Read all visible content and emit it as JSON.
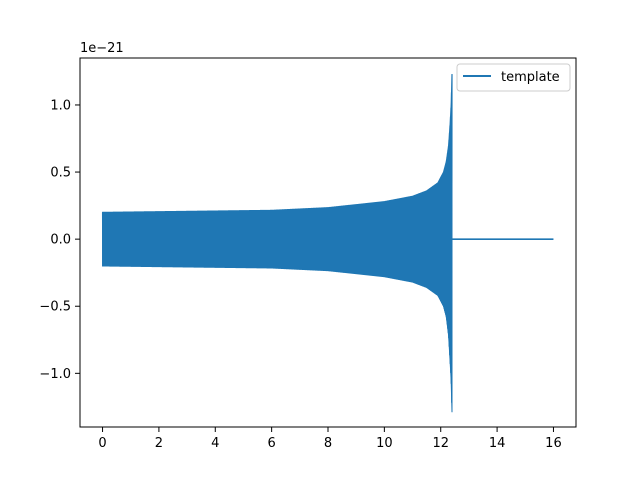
{
  "chart_data": {
    "type": "line",
    "title": "",
    "xlabel": "",
    "ylabel": "",
    "y_offset_label": "1e−21",
    "xlim": [
      -0.8,
      16.8
    ],
    "ylim": [
      -1.4,
      1.35
    ],
    "x_ticks": [
      0,
      2,
      4,
      6,
      8,
      10,
      12,
      14,
      16
    ],
    "x_tick_labels": [
      "0",
      "2",
      "4",
      "6",
      "8",
      "10",
      "12",
      "14",
      "16"
    ],
    "y_ticks": [
      -1.0,
      -0.5,
      0.0,
      0.5,
      1.0
    ],
    "y_tick_labels": [
      "−1.0",
      "−0.5",
      "0.0",
      "0.5",
      "1.0"
    ],
    "legend_position": "top-right",
    "grid": false,
    "series": [
      {
        "name": "template",
        "color": "#1f77b4",
        "envelope_upper": [
          [
            0.0,
            0.2
          ],
          [
            2.0,
            0.205
          ],
          [
            4.0,
            0.21
          ],
          [
            6.0,
            0.215
          ],
          [
            8.0,
            0.235
          ],
          [
            10.0,
            0.28
          ],
          [
            11.0,
            0.32
          ],
          [
            11.5,
            0.36
          ],
          [
            11.9,
            0.42
          ],
          [
            12.1,
            0.5
          ],
          [
            12.2,
            0.58
          ],
          [
            12.28,
            0.7
          ],
          [
            12.33,
            0.85
          ],
          [
            12.37,
            1.0
          ],
          [
            12.4,
            1.23
          ]
        ],
        "envelope_lower": [
          [
            0.0,
            -0.2
          ],
          [
            2.0,
            -0.205
          ],
          [
            4.0,
            -0.21
          ],
          [
            6.0,
            -0.215
          ],
          [
            8.0,
            -0.235
          ],
          [
            10.0,
            -0.28
          ],
          [
            11.0,
            -0.32
          ],
          [
            11.5,
            -0.36
          ],
          [
            11.9,
            -0.42
          ],
          [
            12.1,
            -0.5
          ],
          [
            12.2,
            -0.58
          ],
          [
            12.28,
            -0.72
          ],
          [
            12.33,
            -0.9
          ],
          [
            12.37,
            -1.05
          ],
          [
            12.4,
            -1.29
          ]
        ],
        "merger_time": 12.4,
        "post_merger_value": 0.0,
        "end_time": 16.0
      }
    ]
  }
}
